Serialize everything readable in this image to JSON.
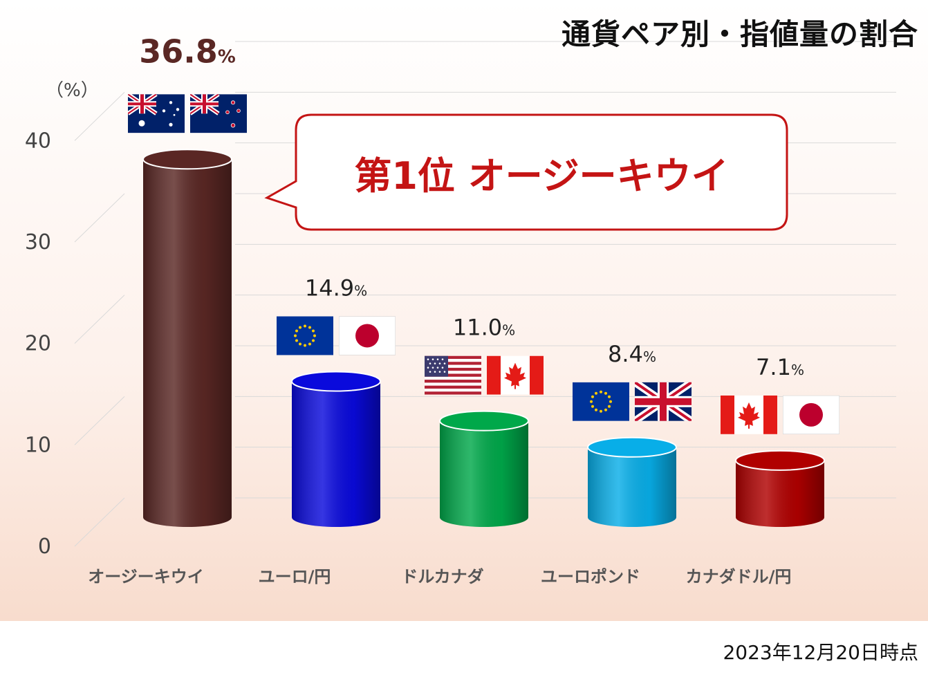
{
  "title": "通貨ペア別・指値量の割合",
  "unit_label": "（%）",
  "date_note": "2023年12月20日時点",
  "callout": "第1位 オージーキウイ",
  "colors": {
    "bar1": "#5a2724",
    "bar2": "#0a0adc",
    "bar3": "#00a84a",
    "bar4": "#08aee8",
    "bar5": "#b00000",
    "callout_text": "#c41414",
    "callout_border": "#c41414"
  },
  "chart_data": {
    "type": "bar",
    "title": "通貨ペア別・指値量の割合",
    "ylabel": "（%）",
    "ylim": [
      0,
      45
    ],
    "yticks": [
      "0",
      "10",
      "20",
      "30",
      "40"
    ],
    "grid": true,
    "categories": [
      "オージーキウイ",
      "ユーロ/円",
      "ドルカナダ",
      "ユーロポンド",
      "カナダドル/円"
    ],
    "values": [
      36.8,
      14.9,
      11.0,
      8.4,
      7.1
    ],
    "value_labels": [
      "36.8",
      "14.9",
      "11.0",
      "8.4",
      "7.1"
    ],
    "value_unit": "%",
    "flags": [
      [
        "australia-flag",
        "new-zealand-flag"
      ],
      [
        "eu-flag",
        "japan-flag"
      ],
      [
        "usa-flag",
        "canada-flag"
      ],
      [
        "eu-flag",
        "uk-flag"
      ],
      [
        "canada-flag",
        "japan-flag"
      ]
    ]
  }
}
